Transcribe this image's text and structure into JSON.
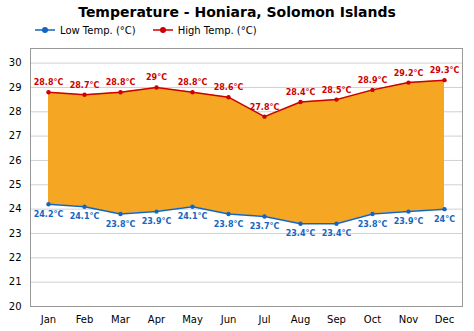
{
  "chart_data": {
    "type": "line",
    "title": "Temperature - Honiara, Solomon Islands",
    "categories": [
      "Jan",
      "Feb",
      "Mar",
      "Apr",
      "May",
      "Jun",
      "Jul",
      "Aug",
      "Sep",
      "Oct",
      "Nov",
      "Dec"
    ],
    "color": "#f5a623",
    "series": [
      {
        "name": "Low Temp. (°C)",
        "color": "#1565c0",
        "marker": "o",
        "values": [
          24.2,
          24.1,
          23.8,
          23.9,
          24.1,
          23.8,
          23.7,
          23.4,
          23.4,
          23.8,
          23.9,
          24.0
        ],
        "value_labels": [
          "24.2°C",
          "24.1°C",
          "23.8°C",
          "23.9°C",
          "24.1°C",
          "23.8°C",
          "23.7°C",
          "23.4°C",
          "23.4°C",
          "23.8°C",
          "23.9°C",
          "24°C"
        ]
      },
      {
        "name": "High Temp. (°C)",
        "color": "#cc0000",
        "marker": "o",
        "values": [
          28.8,
          28.7,
          28.8,
          29.0,
          28.8,
          28.6,
          27.8,
          28.4,
          28.5,
          28.9,
          29.2,
          29.3
        ],
        "value_labels": [
          "28.8°C",
          "28.7°C",
          "28.8°C",
          "29°C",
          "28.8°C",
          "28.6°C",
          "27.8°C",
          "28.4°C",
          "28.5°C",
          "28.9°C",
          "29.2°C",
          "29.3°C"
        ]
      }
    ],
    "ylim": [
      20,
      30.6
    ],
    "yticks": [
      20,
      21,
      22,
      23,
      24,
      25,
      26,
      27,
      28,
      29,
      30
    ],
    "grid": true,
    "legend": "upper left",
    "data_labels": true
  }
}
